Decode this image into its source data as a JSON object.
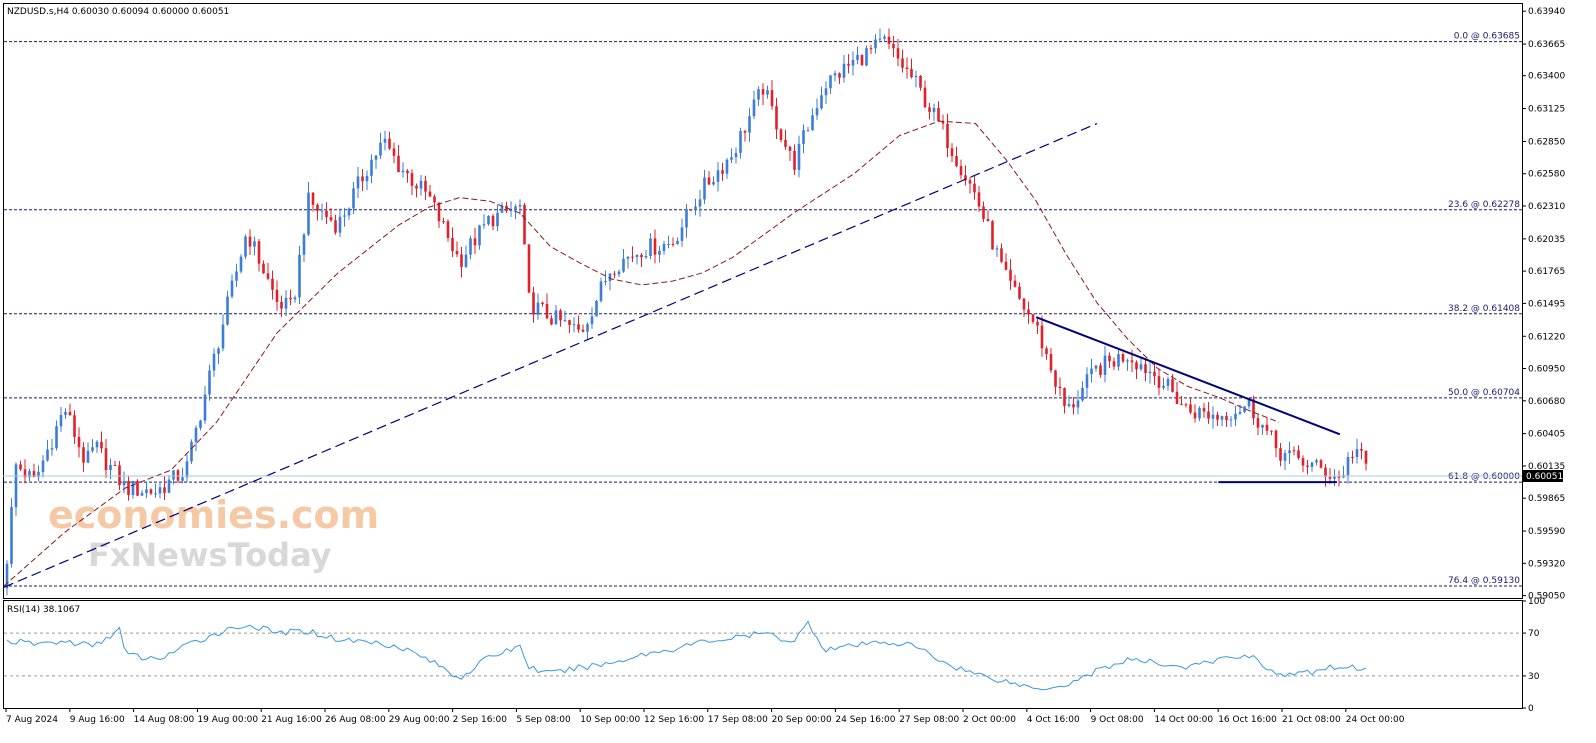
{
  "header": {
    "title": "NZDUSD.s,H4  0.60030 0.60094 0.60000 0.60051"
  },
  "rsi_header": "RSI(14) 38.1067",
  "watermark": {
    "line1": "economies.com",
    "line2": "FxNewsToday"
  },
  "current_price_label": "0.60051",
  "colors": {
    "bull": "#3b7dd8",
    "bear": "#e0202a",
    "ma": "#8b1a1a",
    "fib": "#1a1a6e",
    "trend": "#000080",
    "rsi": "#3a9ad9"
  },
  "chart_data": [
    {
      "type": "candlestick",
      "title": "NZDUSD.s,H4",
      "ylim": [
        0.5903,
        0.64
      ],
      "y_ticks": [
        "0.63940",
        "0.63665",
        "0.63400",
        "0.63125",
        "0.62850",
        "0.62580",
        "0.62310",
        "0.62035",
        "0.61765",
        "0.61495",
        "0.61220",
        "0.60950",
        "0.60680",
        "0.60405",
        "0.60135",
        "0.59865",
        "0.59590",
        "0.59320",
        "0.59050"
      ],
      "x_ticks": [
        "7 Aug 2024",
        "9 Aug 16:00",
        "14 Aug 08:00",
        "19 Aug 00:00",
        "21 Aug 16:00",
        "26 Aug 08:00",
        "29 Aug 00:00",
        "2 Sep 16:00",
        "5 Sep 08:00",
        "10 Sep 00:00",
        "12 Sep 16:00",
        "17 Sep 08:00",
        "20 Sep 00:00",
        "24 Sep 16:00",
        "27 Sep 08:00",
        "2 Oct 00:00",
        "4 Oct 16:00",
        "9 Oct 08:00",
        "14 Oct 00:00",
        "16 Oct 16:00",
        "21 Oct 08:00",
        "24 Oct 00:00"
      ],
      "price_path": [
        [
          0,
          0.5911
        ],
        [
          0.4,
          0.6015
        ],
        [
          1.0,
          0.6
        ],
        [
          2.0,
          0.6062
        ],
        [
          2.7,
          0.6015
        ],
        [
          3.0,
          0.603
        ],
        [
          4.0,
          0.5995
        ],
        [
          5.0,
          0.5992
        ],
        [
          6.0,
          0.601
        ],
        [
          7.0,
          0.6112
        ],
        [
          8.0,
          0.621
        ],
        [
          9.0,
          0.615
        ],
        [
          9.5,
          0.6145
        ],
        [
          10.0,
          0.6235
        ],
        [
          11.0,
          0.6215
        ],
        [
          12.0,
          0.6265
        ],
        [
          12.5,
          0.6285
        ],
        [
          13.0,
          0.6265
        ],
        [
          14.0,
          0.6238
        ],
        [
          15.0,
          0.6185
        ],
        [
          16.0,
          0.622
        ],
        [
          17.0,
          0.623
        ],
        [
          17.3,
          0.615
        ],
        [
          18.0,
          0.6138
        ],
        [
          19.0,
          0.6125
        ],
        [
          20.0,
          0.618
        ],
        [
          21.0,
          0.6195
        ],
        [
          22.0,
          0.62
        ],
        [
          23.0,
          0.6245
        ],
        [
          24.0,
          0.6275
        ],
        [
          25.0,
          0.633
        ],
        [
          26.0,
          0.6265
        ],
        [
          27.0,
          0.6332
        ],
        [
          28.0,
          0.6352
        ],
        [
          29.0,
          0.6368
        ],
        [
          30.0,
          0.6335
        ],
        [
          31.0,
          0.629
        ],
        [
          32.0,
          0.624
        ],
        [
          33.0,
          0.617
        ],
        [
          34.0,
          0.613
        ],
        [
          35.0,
          0.6058
        ],
        [
          36.0,
          0.6095
        ],
        [
          37.0,
          0.6107
        ],
        [
          38.0,
          0.6088
        ],
        [
          39.0,
          0.606
        ],
        [
          40.0,
          0.6055
        ],
        [
          41.0,
          0.6065
        ],
        [
          42.0,
          0.6025
        ],
        [
          43.0,
          0.6015
        ],
        [
          44.0,
          0.6003
        ],
        [
          44.5,
          0.603
        ],
        [
          45.0,
          0.6005
        ]
      ],
      "ma_path": [
        [
          0,
          0.5913
        ],
        [
          2.0,
          0.5958
        ],
        [
          4.0,
          0.5995
        ],
        [
          5.5,
          0.601
        ],
        [
          7.0,
          0.605
        ],
        [
          9.0,
          0.6125
        ],
        [
          11.0,
          0.6175
        ],
        [
          13.0,
          0.6215
        ],
        [
          14.0,
          0.623
        ],
        [
          15.0,
          0.6238
        ],
        [
          16.0,
          0.6235
        ],
        [
          17.0,
          0.6225
        ],
        [
          18.0,
          0.6197
        ],
        [
          19.0,
          0.6183
        ],
        [
          20.0,
          0.617
        ],
        [
          21.0,
          0.6165
        ],
        [
          22.0,
          0.6168
        ],
        [
          23.0,
          0.6175
        ],
        [
          24.0,
          0.6188
        ],
        [
          26.0,
          0.6225
        ],
        [
          28.0,
          0.6258
        ],
        [
          29.5,
          0.629
        ],
        [
          30.8,
          0.6302
        ],
        [
          32.0,
          0.63
        ],
        [
          33.0,
          0.627
        ],
        [
          34.0,
          0.6235
        ],
        [
          35.0,
          0.619
        ],
        [
          36.0,
          0.615
        ],
        [
          37.0,
          0.612
        ],
        [
          38.0,
          0.6095
        ],
        [
          39.0,
          0.608
        ],
        [
          40.0,
          0.6071
        ],
        [
          41.0,
          0.606
        ],
        [
          42.0,
          0.605
        ]
      ],
      "fib_levels": [
        {
          "label": "0.0 @ 0.63685",
          "price": 0.63685
        },
        {
          "label": "23.6 @ 0.62278",
          "price": 0.62278
        },
        {
          "label": "38.2 @ 0.61408",
          "price": 0.61408
        },
        {
          "label": "50.0 @ 0.60704",
          "price": 0.60704
        },
        {
          "label": "61.8 @ 0.60000",
          "price": 0.6
        },
        {
          "label": "76.4 @ 0.59130",
          "price": 0.5913
        }
      ],
      "trendlines": [
        {
          "style": "dashed",
          "from": [
            0,
            0.5912
          ],
          "to": [
            36.0,
            0.63
          ]
        },
        {
          "style": "solid",
          "from": [
            34.0,
            0.6138
          ],
          "to": [
            44.0,
            0.604
          ]
        },
        {
          "style": "solid",
          "from": [
            40.0,
            0.6
          ],
          "to": [
            43.9,
            0.6
          ]
        }
      ]
    },
    {
      "type": "line",
      "title": "RSI(14) 38.1067",
      "ylim": [
        0,
        100
      ],
      "y_ticks": [
        "100",
        "70",
        "30",
        "0"
      ],
      "levels": [
        70,
        30
      ],
      "rsi_path": [
        [
          0,
          63
        ],
        [
          1.0,
          60
        ],
        [
          2.0,
          62
        ],
        [
          3.0,
          58
        ],
        [
          3.8,
          74
        ],
        [
          4.0,
          50
        ],
        [
          5.0,
          45
        ],
        [
          6.0,
          58
        ],
        [
          7.0,
          70
        ],
        [
          8.0,
          78
        ],
        [
          9.0,
          70
        ],
        [
          10.0,
          72
        ],
        [
          11.0,
          64
        ],
        [
          12.0,
          62
        ],
        [
          13.0,
          58
        ],
        [
          14.0,
          45
        ],
        [
          15.0,
          28
        ],
        [
          16.0,
          48
        ],
        [
          17.0,
          58
        ],
        [
          17.3,
          38
        ],
        [
          18.0,
          32
        ],
        [
          19.0,
          38
        ],
        [
          20.0,
          42
        ],
        [
          21.0,
          50
        ],
        [
          22.0,
          55
        ],
        [
          23.0,
          62
        ],
        [
          24.0,
          65
        ],
        [
          25.0,
          70
        ],
        [
          26.0,
          62
        ],
        [
          26.5,
          80
        ],
        [
          27.0,
          55
        ],
        [
          28.0,
          58
        ],
        [
          29.0,
          62
        ],
        [
          30.0,
          58
        ],
        [
          31.0,
          42
        ],
        [
          32.0,
          32
        ],
        [
          33.0,
          25
        ],
        [
          34.0,
          18
        ],
        [
          35.0,
          22
        ],
        [
          36.0,
          35
        ],
        [
          37.0,
          45
        ],
        [
          38.0,
          42
        ],
        [
          39.0,
          38
        ],
        [
          40.0,
          45
        ],
        [
          41.0,
          50
        ],
        [
          42.0,
          30
        ],
        [
          43.0,
          33
        ],
        [
          44.0,
          40
        ],
        [
          44.5,
          37
        ]
      ]
    }
  ]
}
